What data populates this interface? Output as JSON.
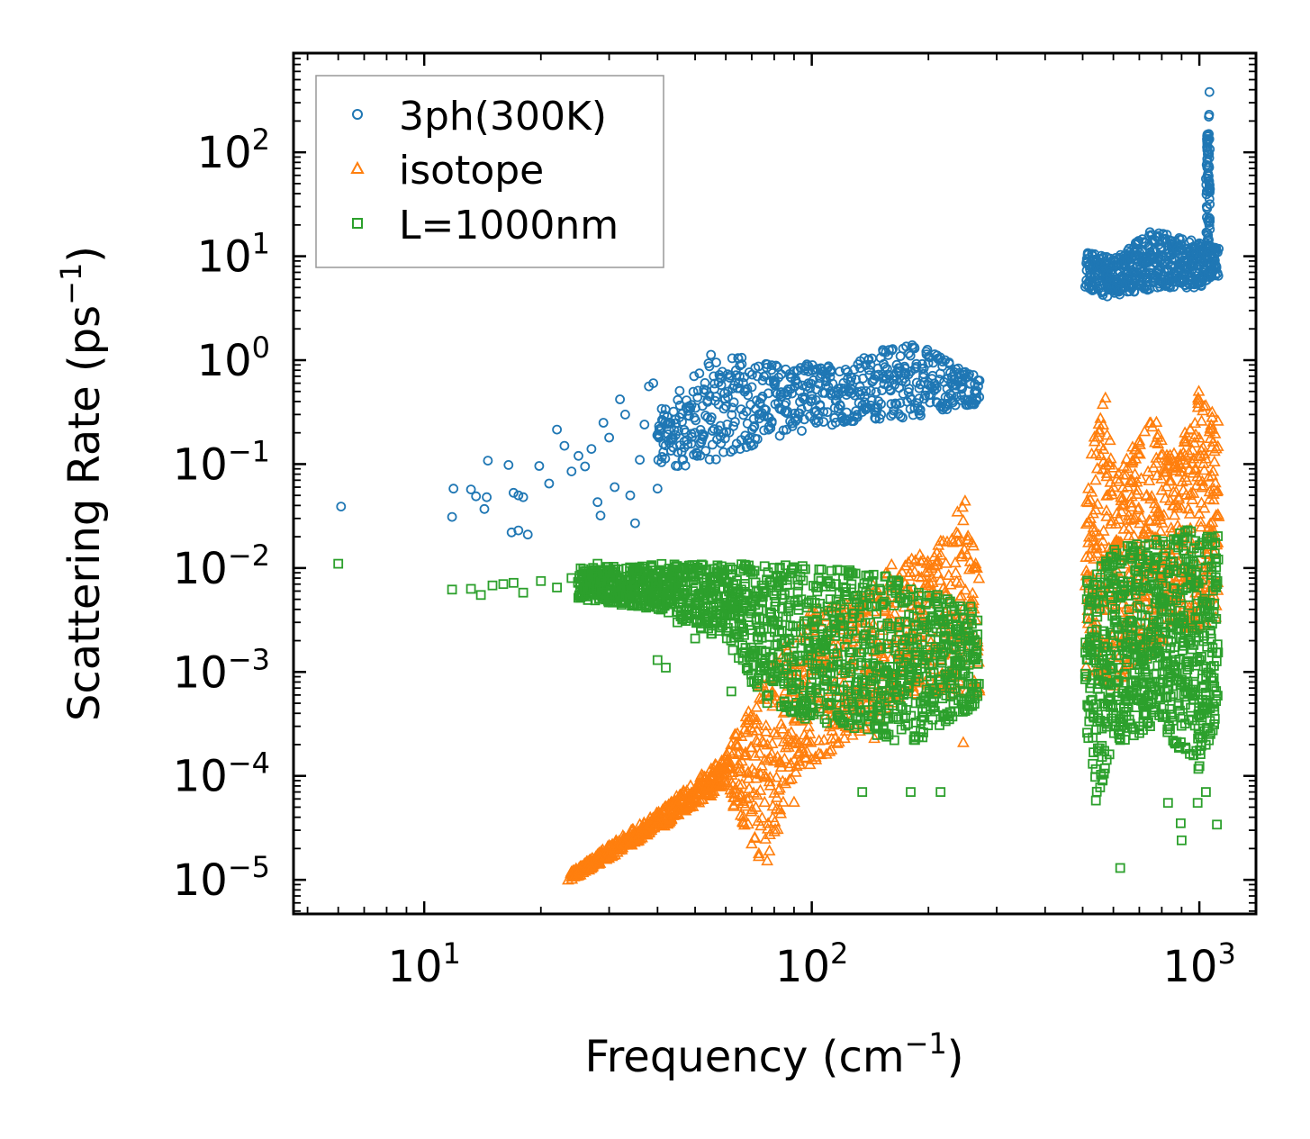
{
  "chart_data": {
    "type": "scatter",
    "title": "",
    "xlabel": "Frequency (cm",
    "xlabel_sup": "−1",
    "xlabel_end": ")",
    "ylabel": "Scattering Rate (ps",
    "ylabel_sup": "−1",
    "ylabel_end": ")",
    "x_scale": "log",
    "y_scale": "log",
    "xlim": [
      4.6,
      1400
    ],
    "ylim": [
      4.7e-06,
      900
    ],
    "x_ticks": [
      {
        "value": 10,
        "base": "10",
        "exp": "1"
      },
      {
        "value": 100,
        "base": "10",
        "exp": "2"
      },
      {
        "value": 1000,
        "base": "10",
        "exp": "3"
      }
    ],
    "y_ticks": [
      {
        "value": 1e-05,
        "base": "10",
        "exp": "−5"
      },
      {
        "value": 0.0001,
        "base": "10",
        "exp": "−4"
      },
      {
        "value": 0.001,
        "base": "10",
        "exp": "−3"
      },
      {
        "value": 0.01,
        "base": "10",
        "exp": "−2"
      },
      {
        "value": 0.1,
        "base": "10",
        "exp": "−1"
      },
      {
        "value": 1,
        "base": "10",
        "exp": "0"
      },
      {
        "value": 10,
        "base": "10",
        "exp": "1"
      },
      {
        "value": 100,
        "base": "10",
        "exp": "2"
      }
    ],
    "legend_placement": "top-left",
    "series": [
      {
        "name": "3ph(300K)",
        "marker": "circle",
        "color": "#1f77b4",
        "points": [
          [
            6.1,
            0.039
          ],
          [
            11.8,
            0.031
          ],
          [
            11.9,
            0.058
          ],
          [
            13.2,
            0.057
          ],
          [
            13.6,
            0.049
          ],
          [
            14.3,
            0.037
          ],
          [
            14.5,
            0.048
          ],
          [
            14.6,
            0.108
          ],
          [
            16.5,
            0.098
          ],
          [
            17.0,
            0.053
          ],
          [
            17.5,
            0.05
          ],
          [
            18.0,
            0.048
          ],
          [
            16.8,
            0.022
          ],
          [
            17.5,
            0.023
          ],
          [
            18.5,
            0.021
          ],
          [
            19.8,
            0.096
          ],
          [
            21.0,
            0.065
          ],
          [
            22.0,
            0.215
          ],
          [
            23.0,
            0.15
          ],
          [
            24.0,
            0.085
          ],
          [
            25.0,
            0.12
          ],
          [
            26.0,
            0.095
          ],
          [
            27.0,
            0.14
          ],
          [
            28.0,
            0.043
          ],
          [
            28.5,
            0.032
          ],
          [
            29.0,
            0.25
          ],
          [
            30.0,
            0.18
          ],
          [
            31.0,
            0.06
          ],
          [
            32.0,
            0.42
          ],
          [
            33.0,
            0.3
          ],
          [
            34.0,
            0.05
          ],
          [
            35.0,
            0.027
          ],
          [
            36.0,
            0.11
          ],
          [
            37.0,
            0.24
          ],
          [
            38.0,
            0.56
          ],
          [
            39.0,
            0.6
          ],
          [
            40.0,
            0.058
          ],
          [
            41.0,
            0.34
          ]
        ],
        "band": {
          "x_start": 40,
          "x_end": 270,
          "x_step_ratio": 1.012,
          "y_lower": [
            [
              40,
              0.09
            ],
            [
              55,
              0.1
            ],
            [
              80,
              0.18
            ],
            [
              120,
              0.25
            ],
            [
              180,
              0.28
            ],
            [
              270,
              0.38
            ]
          ],
          "y_upper": [
            [
              40,
              0.28
            ],
            [
              55,
              1.2
            ],
            [
              80,
              0.95
            ],
            [
              120,
              0.9
            ],
            [
              180,
              1.6
            ],
            [
              270,
              0.7
            ]
          ]
        },
        "band2": {
          "x_start": 510,
          "x_end": 1120,
          "x_step_ratio": 1.006,
          "y_lower": [
            [
              510,
              4.5
            ],
            [
              600,
              4.0
            ],
            [
              800,
              5.0
            ],
            [
              1000,
              5.0
            ],
            [
              1120,
              6.5
            ]
          ],
          "y_upper": [
            [
              510,
              11
            ],
            [
              600,
              9.5
            ],
            [
              750,
              18
            ],
            [
              900,
              15
            ],
            [
              1000,
              14
            ],
            [
              1120,
              12
            ]
          ]
        },
        "spike": [
          [
            1045,
            30
          ],
          [
            1050,
            60
          ],
          [
            1055,
            100
          ],
          [
            1058,
            150
          ],
          [
            1060,
            230
          ],
          [
            1062,
            380
          ],
          [
            1058,
            220
          ],
          [
            1055,
            130
          ]
        ]
      },
      {
        "name": "isotope",
        "marker": "triangle",
        "color": "#ff7f0e",
        "points": [
          [
            23.5,
            1e-05
          ],
          [
            25.0,
            1.1e-05
          ],
          [
            27.0,
            1.3e-05
          ],
          [
            30.0,
            1.8e-05
          ],
          [
            35.0,
            2.6e-05
          ],
          [
            40.0,
            3.6e-05
          ],
          [
            48.0,
            5.5e-05
          ],
          [
            55.0,
            8e-05
          ],
          [
            65.0,
            0.00017
          ],
          [
            72.0,
            0.00022
          ],
          [
            80.0,
            0.00026
          ],
          [
            90.0,
            5.6e-05
          ],
          [
            145.0,
            0.00023
          ],
          [
            246.0,
            0.00021
          ]
        ],
        "band": {
          "x_start": 24,
          "x_end": 270,
          "x_step_ratio": 1.01,
          "y_lower": [
            [
              24,
              1e-05
            ],
            [
              40,
              3e-05
            ],
            [
              60,
              8e-05
            ],
            [
              75,
              1e-05
            ],
            [
              90,
              0.0001
            ],
            [
              140,
              0.0003
            ],
            [
              180,
              0.0006
            ],
            [
              270,
              0.0006
            ]
          ],
          "y_upper": [
            [
              24,
              1.2e-05
            ],
            [
              40,
              4.5e-05
            ],
            [
              60,
              0.00016
            ],
            [
              80,
              0.0015
            ],
            [
              100,
              0.004
            ],
            [
              140,
              0.006
            ],
            [
              160,
              0.012
            ],
            [
              200,
              0.014
            ],
            [
              250,
              0.05
            ],
            [
              270,
              0.009
            ]
          ]
        },
        "band2": {
          "x_start": 510,
          "x_end": 1120,
          "x_step_ratio": 1.006,
          "y_lower": [
            [
              510,
              0.0009
            ],
            [
              600,
              0.0007
            ],
            [
              800,
              0.002
            ],
            [
              1120,
              0.003
            ]
          ],
          "y_upper": [
            [
              510,
              0.05
            ],
            [
              560,
              0.7
            ],
            [
              620,
              0.09
            ],
            [
              760,
              0.3
            ],
            [
              880,
              0.12
            ],
            [
              1000,
              0.55
            ],
            [
              1120,
              0.4
            ]
          ]
        }
      },
      {
        "name": "L=1000nm",
        "marker": "square",
        "color": "#2ca02c",
        "points": [
          [
            6.0,
            0.011
          ],
          [
            11.8,
            0.0062
          ],
          [
            13.2,
            0.0063
          ],
          [
            14.0,
            0.0055
          ],
          [
            15.0,
            0.0068
          ],
          [
            16.0,
            0.007
          ],
          [
            17.0,
            0.0072
          ],
          [
            18.0,
            0.0058
          ],
          [
            20.0,
            0.0075
          ],
          [
            22.0,
            0.0065
          ],
          [
            24.0,
            0.008
          ],
          [
            26.0,
            0.0062
          ],
          [
            28.0,
            0.011
          ],
          [
            30.0,
            0.0075
          ],
          [
            35.0,
            0.006
          ],
          [
            40.0,
            0.0013
          ],
          [
            42.0,
            0.0011
          ],
          [
            45.0,
            0.003
          ],
          [
            50.0,
            0.0021
          ],
          [
            55.0,
            0.0025
          ],
          [
            62.0,
            0.00065
          ],
          [
            70.0,
            0.0008
          ],
          [
            85.0,
            0.00048
          ],
          [
            95.0,
            0.0004
          ],
          [
            135.0,
            7e-05
          ],
          [
            180.0,
            7e-05
          ],
          [
            215.0,
            7e-05
          ],
          [
            625.0,
            1.3e-05
          ],
          [
            830.0,
            5.5e-05
          ],
          [
            895.0,
            3.5e-05
          ],
          [
            900.0,
            2.4e-05
          ],
          [
            990.0,
            5.5e-05
          ],
          [
            1040.0,
            7e-05
          ],
          [
            1110.0,
            3.4e-05
          ]
        ],
        "band": {
          "x_start": 25,
          "x_end": 270,
          "x_step_ratio": 1.008,
          "y_lower": [
            [
              25,
              0.005
            ],
            [
              40,
              0.004
            ],
            [
              60,
              0.002
            ],
            [
              80,
              0.0004
            ],
            [
              120,
              0.0003
            ],
            [
              180,
              0.0002
            ],
            [
              270,
              0.0005
            ]
          ],
          "y_upper": [
            [
              25,
              0.01
            ],
            [
              40,
              0.011
            ],
            [
              60,
              0.011
            ],
            [
              100,
              0.0105
            ],
            [
              150,
              0.009
            ],
            [
              200,
              0.006
            ],
            [
              270,
              0.004
            ]
          ]
        },
        "band2": {
          "x_start": 510,
          "x_end": 1120,
          "x_step_ratio": 1.005,
          "y_lower": [
            [
              510,
              0.0003
            ],
            [
              540,
              5e-05
            ],
            [
              600,
              0.0002
            ],
            [
              800,
              0.0003
            ],
            [
              1000,
              0.0001
            ],
            [
              1120,
              0.0004
            ]
          ],
          "y_upper": [
            [
              510,
              0.008
            ],
            [
              600,
              0.015
            ],
            [
              800,
              0.02
            ],
            [
              1000,
              0.025
            ],
            [
              1120,
              0.02
            ]
          ]
        }
      }
    ]
  }
}
